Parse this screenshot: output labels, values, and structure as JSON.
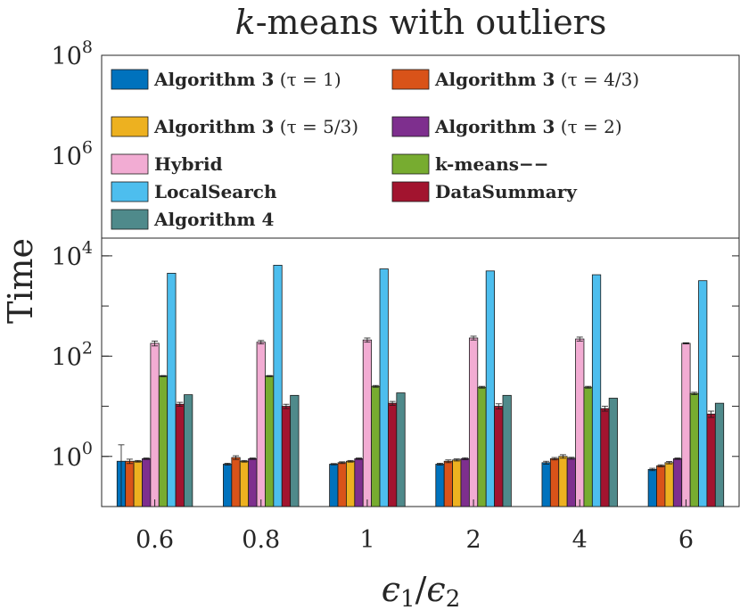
{
  "chart_data": {
    "type": "bar",
    "scale": "log",
    "title": "k-means with outliers",
    "xlabel": "ϵ1/ϵ2",
    "ylabel": "Time",
    "ylim": [
      0.1,
      100000000
    ],
    "yticks": [
      {
        "value": 1,
        "base": "10",
        "exp": "0"
      },
      {
        "value": 100,
        "base": "10",
        "exp": "2"
      },
      {
        "value": 10000,
        "base": "10",
        "exp": "4"
      },
      {
        "value": 1000000,
        "base": "10",
        "exp": "6"
      },
      {
        "value": 100000000,
        "base": "10",
        "exp": "8"
      }
    ],
    "categories": [
      "0.6",
      "0.8",
      "1",
      "2",
      "4",
      "6"
    ],
    "legend_position": "top",
    "series": [
      {
        "name": "Algorithm 3 (τ = 1)",
        "bold": "Algorithm 3",
        "math": "(τ = 1)",
        "color": "#0072BD",
        "values": [
          0.8,
          0.7,
          0.7,
          0.7,
          0.75,
          0.55
        ],
        "err": [
          0.9,
          0.03,
          0.02,
          0.03,
          0.05,
          0.03
        ]
      },
      {
        "name": "Algorithm 3 (τ = 4/3)",
        "bold": "Algorithm 3",
        "math": "(τ = 4/3)",
        "color": "#D95319",
        "values": [
          0.8,
          0.95,
          0.75,
          0.8,
          0.9,
          0.65
        ],
        "err": [
          0.08,
          0.08,
          0.03,
          0.05,
          0.05,
          0.03
        ]
      },
      {
        "name": "Algorithm 3 (τ = 5/3)",
        "bold": "Algorithm 3",
        "math": "(τ = 5/3)",
        "color": "#EDB120",
        "values": [
          0.8,
          0.8,
          0.8,
          0.85,
          1.0,
          0.75
        ],
        "err": [
          0.03,
          0.03,
          0.03,
          0.04,
          0.08,
          0.04
        ]
      },
      {
        "name": "Algorithm 3 (τ = 2)",
        "bold": "Algorithm 3",
        "math": "(τ = 2)",
        "color": "#7E2F8E",
        "values": [
          0.9,
          0.9,
          0.9,
          0.9,
          0.92,
          0.9
        ],
        "err": [
          0.03,
          0.03,
          0.03,
          0.04,
          0.04,
          0.03
        ]
      },
      {
        "name": "Hybrid",
        "bold": "Hybrid",
        "math": "",
        "color": "#F2ACD3",
        "values": [
          180,
          190,
          210,
          230,
          220,
          180
        ],
        "err": [
          20,
          15,
          20,
          20,
          20,
          5
        ]
      },
      {
        "name": "k-means−−",
        "bold": "k-means−−",
        "math": "",
        "color": "#77AC30",
        "values": [
          40,
          40,
          25,
          24,
          24,
          18
        ],
        "err": [
          1,
          1,
          1,
          1,
          1,
          1
        ]
      },
      {
        "name": "LocalSearch",
        "bold": "LocalSearch",
        "math": "",
        "color": "#4DBEEE",
        "values": [
          4500,
          6500,
          5500,
          5000,
          4200,
          3200
        ],
        "err": [
          0,
          0,
          0,
          0,
          0,
          0
        ]
      },
      {
        "name": "DataSummary",
        "bold": "DataSummary",
        "math": "",
        "color": "#A2142F",
        "values": [
          11,
          10,
          11.5,
          10,
          9,
          7
        ],
        "err": [
          1,
          1,
          1,
          1.2,
          1,
          1
        ]
      },
      {
        "name": "Algorithm 4",
        "bold": "Algorithm 4",
        "math": "",
        "color": "#4F8A8B",
        "values": [
          17,
          16.5,
          18.5,
          16.5,
          14.5,
          11.5
        ],
        "err": [
          0,
          0,
          0,
          0,
          0,
          0
        ]
      }
    ]
  }
}
